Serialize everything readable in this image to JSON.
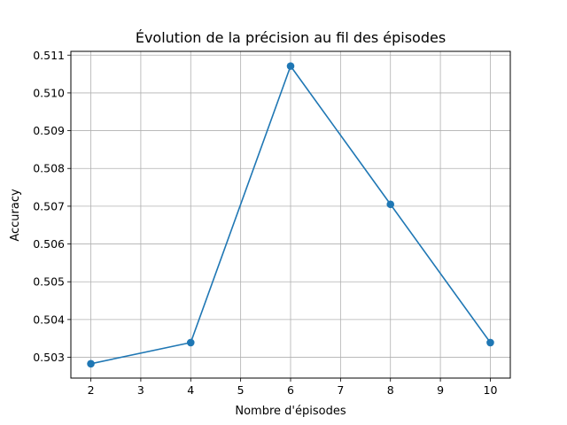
{
  "chart_data": {
    "type": "line",
    "title": "Évolution de la précision au fil des épisodes",
    "xlabel": "Nombre d'épisodes",
    "ylabel": "Accuracy",
    "xlim": [
      1.6,
      10.4
    ],
    "ylim": [
      0.50245,
      0.5111
    ],
    "x_ticks": [
      2,
      3,
      4,
      5,
      6,
      7,
      8,
      9,
      10
    ],
    "y_ticks": [
      0.503,
      0.504,
      0.505,
      0.506,
      0.507,
      0.508,
      0.509,
      0.51,
      0.511
    ],
    "x_tick_labels": [
      "2",
      "3",
      "4",
      "5",
      "6",
      "7",
      "8",
      "9",
      "10"
    ],
    "y_tick_labels": [
      "0.503",
      "0.504",
      "0.505",
      "0.506",
      "0.507",
      "0.508",
      "0.509",
      "0.510",
      "0.511"
    ],
    "grid": true,
    "series": [
      {
        "color": "#1f77b4",
        "marker": "circle",
        "x": [
          2,
          4,
          6,
          8,
          10
        ],
        "y": [
          0.50283,
          0.50339,
          0.51071,
          0.50705,
          0.50339
        ]
      }
    ]
  }
}
